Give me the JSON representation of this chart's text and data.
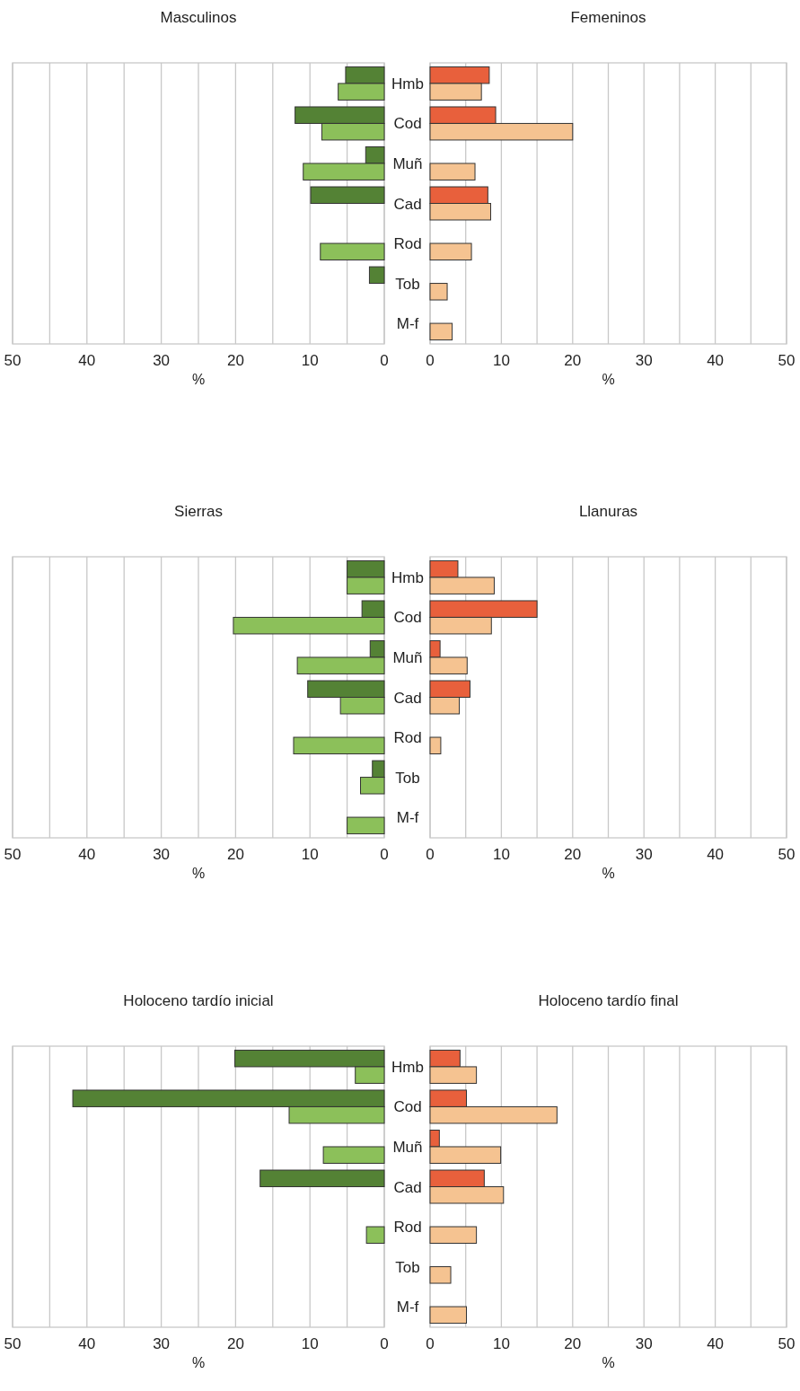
{
  "chart_data": [
    {
      "type": "bar",
      "orientation": "horizontal",
      "title": "Masculinos",
      "xlabel": "%",
      "categories": [
        "Hmb",
        "Cod",
        "Muñ",
        "Cad",
        "Rod",
        "Tob",
        "M-f"
      ],
      "xlim": [
        50,
        0
      ],
      "xticks": [
        50,
        {
          "value": 45,
          "label": null
        },
        40,
        {
          "value": 35,
          "label": null
        },
        30,
        {
          "value": 25,
          "label": null
        },
        20,
        {
          "value": 15,
          "label": null
        },
        10,
        {
          "value": 5,
          "label": null
        },
        0
      ],
      "grid": "x",
      "series": [
        {
          "color": "#548235",
          "values": [
            5.2,
            12.0,
            2.5,
            9.9,
            null,
            2.0,
            null
          ]
        },
        {
          "color": "#8cc05a",
          "values": [
            6.2,
            8.4,
            10.9,
            null,
            8.6,
            null,
            null
          ]
        }
      ]
    },
    {
      "type": "bar",
      "orientation": "horizontal",
      "title": "Femeninos",
      "xlabel": "%",
      "categories": [
        null,
        null,
        null,
        null,
        null,
        null,
        null
      ],
      "xlim": [
        0,
        50
      ],
      "xticks": [
        0,
        {
          "value": 5,
          "label": null
        },
        10,
        {
          "value": 15,
          "label": null
        },
        20,
        {
          "value": 25,
          "label": null
        },
        30,
        {
          "value": 35,
          "label": null
        },
        40,
        {
          "value": 45,
          "label": null
        },
        50
      ],
      "grid": "x",
      "tick_labels": "x",
      "series": [
        {
          "color": "#e8603c",
          "values": [
            8.3,
            9.2,
            null,
            8.1,
            null,
            null,
            null
          ]
        },
        {
          "color": "#f5c391",
          "values": [
            7.2,
            20.0,
            6.3,
            8.5,
            5.8,
            2.4,
            3.1
          ]
        }
      ]
    },
    {
      "type": "bar",
      "orientation": "horizontal",
      "title": "Sierras",
      "xlabel": "%",
      "categories": [
        "Hmb",
        "Cod",
        "Muñ",
        "Cad",
        "Rod",
        "Tob",
        "M-f"
      ],
      "xlim": [
        50,
        0
      ],
      "xticks": [
        50,
        {
          "value": 45,
          "label": null
        },
        40,
        {
          "value": 35,
          "label": null
        },
        30,
        {
          "value": 25,
          "label": null
        },
        20,
        {
          "value": 15,
          "label": null
        },
        10,
        {
          "value": 5,
          "label": null
        },
        0
      ],
      "grid": "x",
      "series": [
        {
          "color": "#548235",
          "values": [
            5.0,
            3.0,
            1.9,
            10.3,
            null,
            1.6,
            null
          ]
        },
        {
          "color": "#8cc05a",
          "values": [
            5.0,
            20.3,
            11.7,
            5.9,
            12.2,
            3.2,
            5.0
          ]
        }
      ]
    },
    {
      "type": "bar",
      "orientation": "horizontal",
      "title": "Llanuras",
      "xlabel": "%",
      "categories": [
        null,
        null,
        null,
        null,
        null,
        null,
        null
      ],
      "xlim": [
        0,
        50
      ],
      "xticks": [
        0,
        {
          "value": 5,
          "label": null
        },
        10,
        {
          "value": 15,
          "label": null
        },
        20,
        {
          "value": 25,
          "label": null
        },
        30,
        {
          "value": 35,
          "label": null
        },
        40,
        {
          "value": 45,
          "label": null
        },
        50
      ],
      "grid": "x",
      "tick_labels": "x",
      "series": [
        {
          "color": "#e8603c",
          "values": [
            3.9,
            15.0,
            1.4,
            5.6,
            null,
            null,
            null
          ]
        },
        {
          "color": "#f5c391",
          "values": [
            9.0,
            8.6,
            5.2,
            4.1,
            1.5,
            null,
            null
          ]
        }
      ]
    },
    {
      "type": "bar",
      "orientation": "horizontal",
      "title": "Holoceno tardío inicial",
      "xlabel": "%",
      "categories": [
        "Hmb",
        "Cod",
        "Muñ",
        "Cad",
        "Rod",
        "Tob",
        "M-f"
      ],
      "xlim": [
        50,
        0
      ],
      "xticks": [
        50,
        {
          "value": 45,
          "label": null
        },
        40,
        {
          "value": 35,
          "label": null
        },
        30,
        {
          "value": 25,
          "label": null
        },
        20,
        {
          "value": 15,
          "label": null
        },
        10,
        {
          "value": 5,
          "label": null
        },
        0
      ],
      "grid": "x",
      "series": [
        {
          "color": "#548235",
          "values": [
            20.1,
            41.9,
            null,
            16.7,
            null,
            null,
            null
          ]
        },
        {
          "color": "#8cc05a",
          "values": [
            3.9,
            12.8,
            8.2,
            null,
            2.4,
            null,
            null
          ]
        }
      ]
    },
    {
      "type": "bar",
      "orientation": "horizontal",
      "title": "Holoceno tardío final",
      "xlabel": "%",
      "categories": [
        null,
        null,
        null,
        null,
        null,
        null,
        null
      ],
      "xlim": [
        0,
        50
      ],
      "xticks": [
        0,
        {
          "value": 5,
          "label": null
        },
        10,
        {
          "value": 15,
          "label": null
        },
        20,
        {
          "value": 25,
          "label": null
        },
        30,
        {
          "value": 35,
          "label": null
        },
        40,
        {
          "value": 45,
          "label": null
        },
        50
      ],
      "grid": "x",
      "tick_labels": "x",
      "series": [
        {
          "color": "#e8603c",
          "values": [
            4.2,
            5.1,
            1.3,
            7.6,
            null,
            null,
            null
          ]
        },
        {
          "color": "#f5c391",
          "values": [
            6.5,
            17.8,
            9.9,
            10.3,
            6.5,
            2.9,
            5.1
          ]
        }
      ]
    }
  ]
}
